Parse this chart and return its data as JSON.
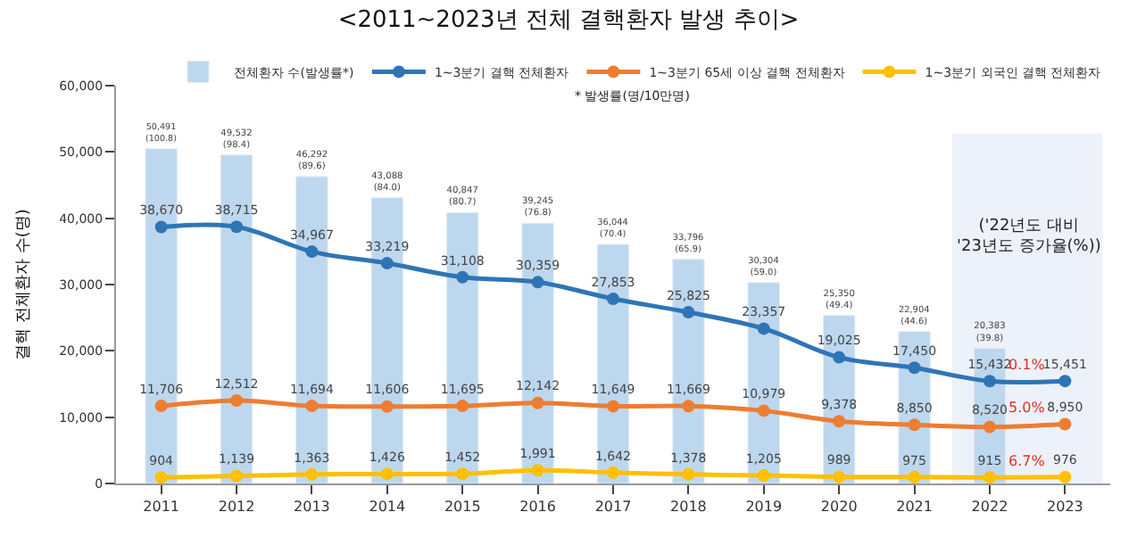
{
  "chart_data": {
    "type": "bar",
    "title": "<2011~2023년 전체 결핵환자 발생 추이>",
    "ylabel": "결핵 전체환자 수(명)",
    "categories": [
      "2011",
      "2012",
      "2013",
      "2014",
      "2015",
      "2016",
      "2017",
      "2018",
      "2019",
      "2020",
      "2021",
      "2022",
      "2023"
    ],
    "ylim": [
      0,
      60000
    ],
    "yticks": [
      {
        "value": 0,
        "label": "0"
      },
      {
        "value": 10000,
        "label": "10,000"
      },
      {
        "value": 20000,
        "label": "20,000"
      },
      {
        "value": 30000,
        "label": "30,000"
      },
      {
        "value": 40000,
        "label": "40,000"
      },
      {
        "value": 50000,
        "label": "50,000"
      },
      {
        "value": 60000,
        "label": "60,000"
      }
    ],
    "grid": false,
    "legend": "top right",
    "marker": "circle",
    "series": [
      {
        "name": "전체환자 수(발생률*)",
        "color": "#bdd7ee",
        "values": [
          50491,
          49532,
          46292,
          43088,
          40847,
          39245,
          36044,
          33796,
          30304,
          25350,
          22904,
          20383,
          null
        ],
        "value_labels": [
          "50,491\n(100.8)",
          "49,532\n(98.4)",
          "46,292\n(89.6)",
          "43,088\n(84.0)",
          "40,847\n(80.7)",
          "39,245\n(76.8)",
          "36,044\n(70.4)",
          "33,796\n(65.9)",
          "30,304\n(59.0)",
          "25,350\n(49.4)",
          "22,904\n(44.6)",
          "20,383\n(39.8)",
          null
        ]
      },
      {
        "name": "1~3분기 결핵 전체환자",
        "type": "line",
        "color": "#2e75b6",
        "values": [
          38670,
          38715,
          34967,
          33219,
          31108,
          30359,
          27853,
          25825,
          23357,
          19025,
          17450,
          15432,
          15451
        ],
        "value_labels": [
          "38,670",
          "38,715",
          "34,967",
          "33,219",
          "31,108",
          "30,359",
          "27,853",
          "25,825",
          "23,357",
          "19,025",
          "17,450",
          "15,432",
          "15,451"
        ]
      },
      {
        "name": "1~3분기 65세 이상 결핵 전체환자",
        "type": "line",
        "color": "#ed7d31",
        "values": [
          11706,
          12512,
          11694,
          11606,
          11695,
          12142,
          11649,
          11669,
          10979,
          9378,
          8850,
          8520,
          8950
        ],
        "value_labels": [
          "11,706",
          "12,512",
          "11,694",
          "11,606",
          "11,695",
          "12,142",
          "11,649",
          "11,669",
          "10,979",
          "9,378",
          "8,850",
          "8,520",
          "8,950"
        ]
      },
      {
        "name": "1~3분기 외국인 결핵 전체환자",
        "type": "line",
        "color": "#ffc000",
        "values": [
          904,
          1139,
          1363,
          1426,
          1452,
          1991,
          1642,
          1378,
          1205,
          989,
          975,
          915,
          976
        ],
        "value_labels": [
          "904",
          "1,139",
          "1,363",
          "1,426",
          "1,452",
          "1,991",
          "1,642",
          "1,378",
          "1,205",
          "989",
          "975",
          "915",
          "976"
        ]
      }
    ],
    "bands": [
      {
        "axis": "x",
        "from": "2022",
        "to": "2023",
        "color": "#edf2fa"
      }
    ],
    "annotations": [
      "* 발생률(명/10만명)",
      "('22년도 대비\n'23년도 증가율(%))",
      {
        "text": "0.1%",
        "x": "2023",
        "y": 15451
      },
      {
        "text": "5.0%",
        "x": "2023",
        "y": 8950
      },
      {
        "text": "6.7%",
        "x": "2023",
        "y": 976
      }
    ]
  }
}
